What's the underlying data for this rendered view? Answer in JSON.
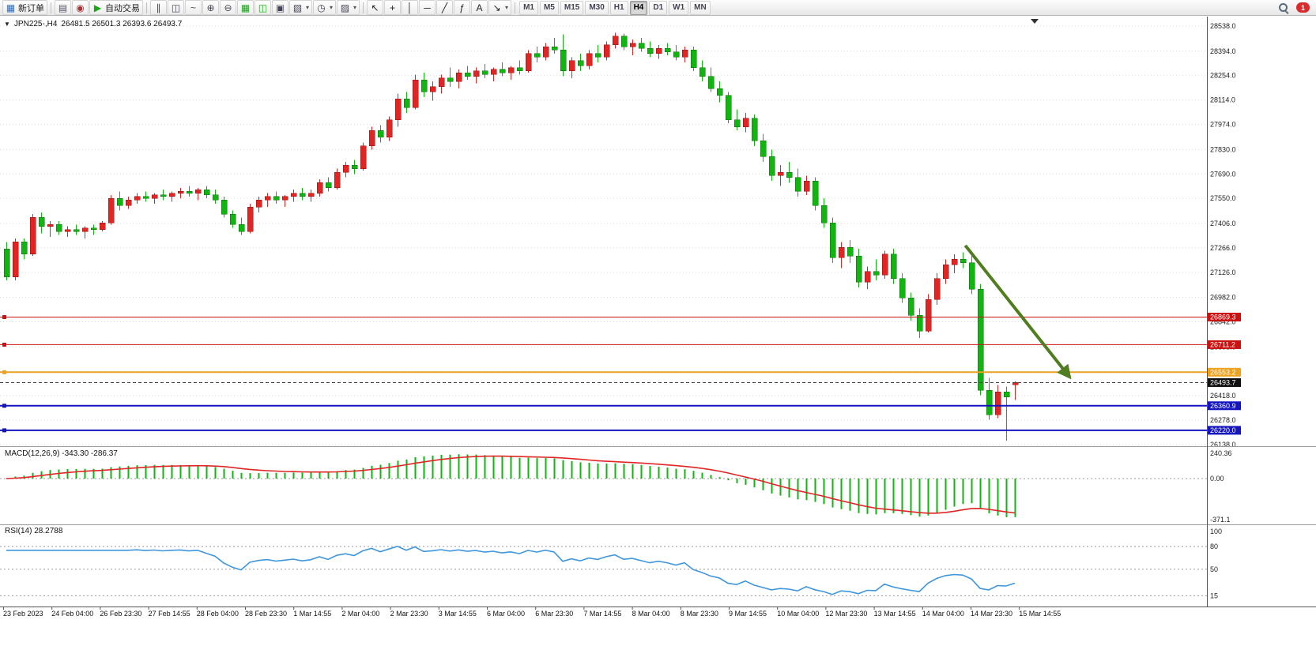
{
  "toolbar": {
    "new_order": "新订单",
    "autotrade": "自动交易",
    "timeframes": [
      "M1",
      "M5",
      "M15",
      "M30",
      "H1",
      "H4",
      "D1",
      "W1",
      "MN"
    ],
    "active_timeframe": "H4",
    "notification_count": "1",
    "items": [
      {
        "name": "new-order-icon",
        "glyph": "▦",
        "color": "#2c6fbb",
        "with_label": "new_order"
      },
      {
        "sep": true
      },
      {
        "name": "print-icon",
        "glyph": "▤",
        "color": "#556"
      },
      {
        "name": "news-icon",
        "glyph": "◉",
        "color": "#b03030"
      },
      {
        "name": "autotrade-play-icon",
        "glyph": "▶",
        "color": "#18a818",
        "with_label": "autotrade"
      },
      {
        "sep": true
      },
      {
        "name": "bars-chart-icon",
        "glyph": "∥",
        "color": "#445"
      },
      {
        "name": "candlestick-chart-icon",
        "glyph": "◫",
        "color": "#445"
      },
      {
        "name": "line-chart-icon",
        "glyph": "~",
        "color": "#445"
      },
      {
        "name": "zoom-in-icon",
        "glyph": "⊕",
        "color": "#445"
      },
      {
        "name": "zoom-out-icon",
        "glyph": "⊖",
        "color": "#445"
      },
      {
        "name": "tile-windows-icon",
        "glyph": "▦",
        "color": "#18a818"
      },
      {
        "name": "cascade-windows-icon",
        "glyph": "◫",
        "color": "#18a818"
      },
      {
        "name": "arrange-windows-icon",
        "glyph": "▣",
        "color": "#445"
      },
      {
        "name": "new-chart-icon",
        "glyph": "▧",
        "color": "#445",
        "dropdown": true
      },
      {
        "name": "period-clock-icon",
        "glyph": "◷",
        "color": "#445",
        "dropdown": true
      },
      {
        "name": "snapshot-icon",
        "glyph": "▨",
        "color": "#445",
        "dropdown": true
      },
      {
        "sep": true
      },
      {
        "name": "cursor-icon",
        "glyph": "↖",
        "color": "#222"
      },
      {
        "name": "crosshair-icon",
        "glyph": "+",
        "color": "#222"
      },
      {
        "name": "vertical-line-icon",
        "glyph": "│",
        "color": "#222"
      },
      {
        "name": "horizontal-line-icon",
        "glyph": "─",
        "color": "#222"
      },
      {
        "name": "trendline-icon",
        "glyph": "╱",
        "color": "#222"
      },
      {
        "name": "fibonacci-icon",
        "glyph": "ƒ",
        "color": "#222"
      },
      {
        "name": "text-icon",
        "glyph": "A",
        "color": "#222"
      },
      {
        "name": "arrows-icon",
        "glyph": "↘",
        "color": "#222",
        "dropdown": true
      },
      {
        "sep": true
      }
    ]
  },
  "chart": {
    "symbol_period": "JPN225-,H4",
    "ohlc": "26481.5 26501.3 26393.6 26493.7"
  },
  "indicators": {
    "macd": {
      "label": "MACD(12,26,9) -343.30 -286.37",
      "scale_top": "240.36",
      "scale_zero": "0.00",
      "scale_bottom": "-371.1"
    },
    "rsi": {
      "label": "RSI(14) 28.2788",
      "levels": [
        "100",
        "80",
        "50",
        "15"
      ],
      "level_values": [
        100,
        80,
        50,
        15
      ],
      "dashed_levels": [
        80,
        50,
        15
      ]
    }
  },
  "chart_data": {
    "type": "candlestick",
    "symbol": "JPN225-",
    "period": "H4",
    "colors": {
      "up": "#e02525",
      "down": "#11b411",
      "up_edge": "#8f1010",
      "down_edge": "#0a6e0a",
      "macd_hist": "#11b411",
      "macd_signal": "#e02525",
      "rsi_line": "#3f96dd"
    },
    "price_axis": {
      "top": 28538.0,
      "bottom": 26138.0
    },
    "price_ticks": [
      "28538.0",
      "28394.0",
      "28254.0",
      "28114.0",
      "27974.0",
      "27830.0",
      "27690.0",
      "27550.0",
      "27406.0",
      "27266.0",
      "27126.0",
      "26982.0",
      "26842.0",
      "26698.0",
      "26558.0",
      "26418.0",
      "26278.0",
      "26138.0"
    ],
    "candles": [
      [
        27260,
        27300,
        27080,
        27100
      ],
      [
        27100,
        27320,
        27080,
        27300
      ],
      [
        27300,
        27320,
        27200,
        27230
      ],
      [
        27230,
        27460,
        27220,
        27440
      ],
      [
        27440,
        27470,
        27350,
        27390
      ],
      [
        27390,
        27420,
        27330,
        27400
      ],
      [
        27400,
        27420,
        27340,
        27360
      ],
      [
        27360,
        27390,
        27330,
        27370
      ],
      [
        27370,
        27400,
        27340,
        27360
      ],
      [
        27360,
        27390,
        27320,
        27380
      ],
      [
        27380,
        27400,
        27340,
        27370
      ],
      [
        27370,
        27420,
        27360,
        27410
      ],
      [
        27410,
        27570,
        27400,
        27550
      ],
      [
        27550,
        27590,
        27480,
        27510
      ],
      [
        27510,
        27560,
        27490,
        27540
      ],
      [
        27540,
        27580,
        27520,
        27560
      ],
      [
        27560,
        27590,
        27530,
        27550
      ],
      [
        27550,
        27580,
        27520,
        27570
      ],
      [
        27570,
        27600,
        27540,
        27560
      ],
      [
        27560,
        27590,
        27530,
        27580
      ],
      [
        27580,
        27610,
        27550,
        27590
      ],
      [
        27590,
        27620,
        27560,
        27580
      ],
      [
        27580,
        27610,
        27540,
        27600
      ],
      [
        27600,
        27620,
        27550,
        27570
      ],
      [
        27570,
        27600,
        27520,
        27540
      ],
      [
        27540,
        27560,
        27440,
        27460
      ],
      [
        27460,
        27480,
        27380,
        27400
      ],
      [
        27400,
        27440,
        27340,
        27360
      ],
      [
        27360,
        27520,
        27350,
        27500
      ],
      [
        27500,
        27560,
        27470,
        27540
      ],
      [
        27540,
        27580,
        27500,
        27560
      ],
      [
        27560,
        27590,
        27520,
        27540
      ],
      [
        27540,
        27570,
        27500,
        27560
      ],
      [
        27560,
        27600,
        27530,
        27580
      ],
      [
        27580,
        27610,
        27540,
        27560
      ],
      [
        27560,
        27600,
        27530,
        27580
      ],
      [
        27580,
        27660,
        27560,
        27640
      ],
      [
        27640,
        27670,
        27590,
        27610
      ],
      [
        27610,
        27720,
        27600,
        27700
      ],
      [
        27700,
        27760,
        27670,
        27740
      ],
      [
        27740,
        27770,
        27690,
        27720
      ],
      [
        27720,
        27870,
        27710,
        27850
      ],
      [
        27850,
        27960,
        27830,
        27940
      ],
      [
        27940,
        27970,
        27870,
        27900
      ],
      [
        27900,
        28020,
        27880,
        28000
      ],
      [
        28000,
        28150,
        27960,
        28120
      ],
      [
        28120,
        28160,
        28040,
        28070
      ],
      [
        28070,
        28260,
        28060,
        28230
      ],
      [
        28230,
        28270,
        28130,
        28160
      ],
      [
        28160,
        28220,
        28110,
        28190
      ],
      [
        28190,
        28260,
        28150,
        28240
      ],
      [
        28240,
        28300,
        28190,
        28220
      ],
      [
        28220,
        28290,
        28180,
        28270
      ],
      [
        28270,
        28310,
        28230,
        28250
      ],
      [
        28250,
        28300,
        28210,
        28280
      ],
      [
        28280,
        28320,
        28240,
        28260
      ],
      [
        28260,
        28300,
        28220,
        28290
      ],
      [
        28290,
        28330,
        28250,
        28270
      ],
      [
        28270,
        28310,
        28230,
        28300
      ],
      [
        28300,
        28340,
        28260,
        28280
      ],
      [
        28280,
        28400,
        28270,
        28380
      ],
      [
        28380,
        28420,
        28330,
        28360
      ],
      [
        28360,
        28440,
        28340,
        28420
      ],
      [
        28420,
        28470,
        28380,
        28400
      ],
      [
        28400,
        28490,
        28250,
        28280
      ],
      [
        28280,
        28360,
        28240,
        28340
      ],
      [
        28340,
        28380,
        28280,
        28310
      ],
      [
        28310,
        28400,
        28290,
        28380
      ],
      [
        28380,
        28430,
        28330,
        28360
      ],
      [
        28360,
        28450,
        28340,
        28430
      ],
      [
        28430,
        28500,
        28410,
        28480
      ],
      [
        28480,
        28495,
        28400,
        28420
      ],
      [
        28420,
        28460,
        28370,
        28440
      ],
      [
        28440,
        28470,
        28390,
        28410
      ],
      [
        28410,
        28450,
        28360,
        28380
      ],
      [
        28380,
        28430,
        28350,
        28410
      ],
      [
        28410,
        28440,
        28370,
        28390
      ],
      [
        28390,
        28430,
        28340,
        28360
      ],
      [
        28360,
        28420,
        28330,
        28400
      ],
      [
        28400,
        28420,
        28280,
        28300
      ],
      [
        28300,
        28340,
        28220,
        28250
      ],
      [
        28250,
        28300,
        28160,
        28180
      ],
      [
        28180,
        28220,
        28100,
        28140
      ],
      [
        28140,
        28160,
        27980,
        28000
      ],
      [
        28000,
        28060,
        27940,
        27960
      ],
      [
        27960,
        28040,
        27930,
        28010
      ],
      [
        28010,
        28030,
        27850,
        27880
      ],
      [
        27880,
        27920,
        27760,
        27790
      ],
      [
        27790,
        27830,
        27650,
        27680
      ],
      [
        27680,
        27740,
        27620,
        27700
      ],
      [
        27700,
        27760,
        27640,
        27670
      ],
      [
        27670,
        27720,
        27560,
        27590
      ],
      [
        27590,
        27680,
        27570,
        27650
      ],
      [
        27650,
        27670,
        27480,
        27510
      ],
      [
        27510,
        27550,
        27380,
        27410
      ],
      [
        27410,
        27440,
        27180,
        27210
      ],
      [
        27210,
        27300,
        27150,
        27270
      ],
      [
        27270,
        27310,
        27180,
        27220
      ],
      [
        27220,
        27260,
        27040,
        27070
      ],
      [
        27070,
        27160,
        27030,
        27130
      ],
      [
        27130,
        27200,
        27080,
        27110
      ],
      [
        27110,
        27250,
        27090,
        27230
      ],
      [
        27230,
        27260,
        27060,
        27090
      ],
      [
        27090,
        27120,
        26950,
        26980
      ],
      [
        26980,
        27010,
        26850,
        26880
      ],
      [
        26880,
        26920,
        26750,
        26790
      ],
      [
        26790,
        27000,
        26780,
        26970
      ],
      [
        26970,
        27120,
        26940,
        27090
      ],
      [
        27090,
        27200,
        27060,
        27170
      ],
      [
        27170,
        27230,
        27120,
        27200
      ],
      [
        27200,
        27240,
        27150,
        27180
      ],
      [
        27180,
        27220,
        27000,
        27030
      ],
      [
        27030,
        27060,
        26420,
        26450
      ],
      [
        26450,
        26520,
        26280,
        26310
      ],
      [
        26310,
        26480,
        26290,
        26440
      ],
      [
        26440,
        26470,
        26160,
        26410
      ],
      [
        26481.5,
        26501.3,
        26393.6,
        26493.7
      ]
    ],
    "hlines": [
      {
        "price": 26869.3,
        "label": "26869.3",
        "color": "#cc1111",
        "width": 1
      },
      {
        "price": 26711.2,
        "label": "26711.2",
        "color": "#cc1111",
        "width": 1
      },
      {
        "price": 26553.2,
        "label": "26553.2",
        "color": "#eda221",
        "width": 2
      },
      {
        "price": 26360.9,
        "label": "26360.9",
        "color": "#1515c0",
        "width": 2
      },
      {
        "price": 26220.0,
        "label": "26220.0",
        "color": "#1515c0",
        "width": 2
      }
    ],
    "current_price": {
      "price": 26493.7,
      "label": "26493.7"
    },
    "arrow": {
      "from_index": 110.3,
      "from_price": 27280,
      "to_index": 122.3,
      "to_price": 26525,
      "color": "#4f7d1f"
    },
    "macd_params": [
      12,
      26,
      9
    ],
    "rsi_period": 14,
    "time_labels": [
      "23 Feb 2023",
      "24 Feb 04:00",
      "26 Feb 23:30",
      "27 Feb 14:55",
      "28 Feb 04:00",
      "28 Feb 23:30",
      "1 Mar 14:55",
      "2 Mar 04:00",
      "2 Mar 23:30",
      "3 Mar 14:55",
      "6 Mar 04:00",
      "6 Mar 23:30",
      "7 Mar 14:55",
      "8 Mar 04:00",
      "8 Mar 23:30",
      "9 Mar 14:55",
      "10 Mar 04:00",
      "12 Mar 23:30",
      "13 Mar 14:55",
      "14 Mar 04:00",
      "14 Mar 23:30",
      "15 Mar 14:55"
    ]
  }
}
